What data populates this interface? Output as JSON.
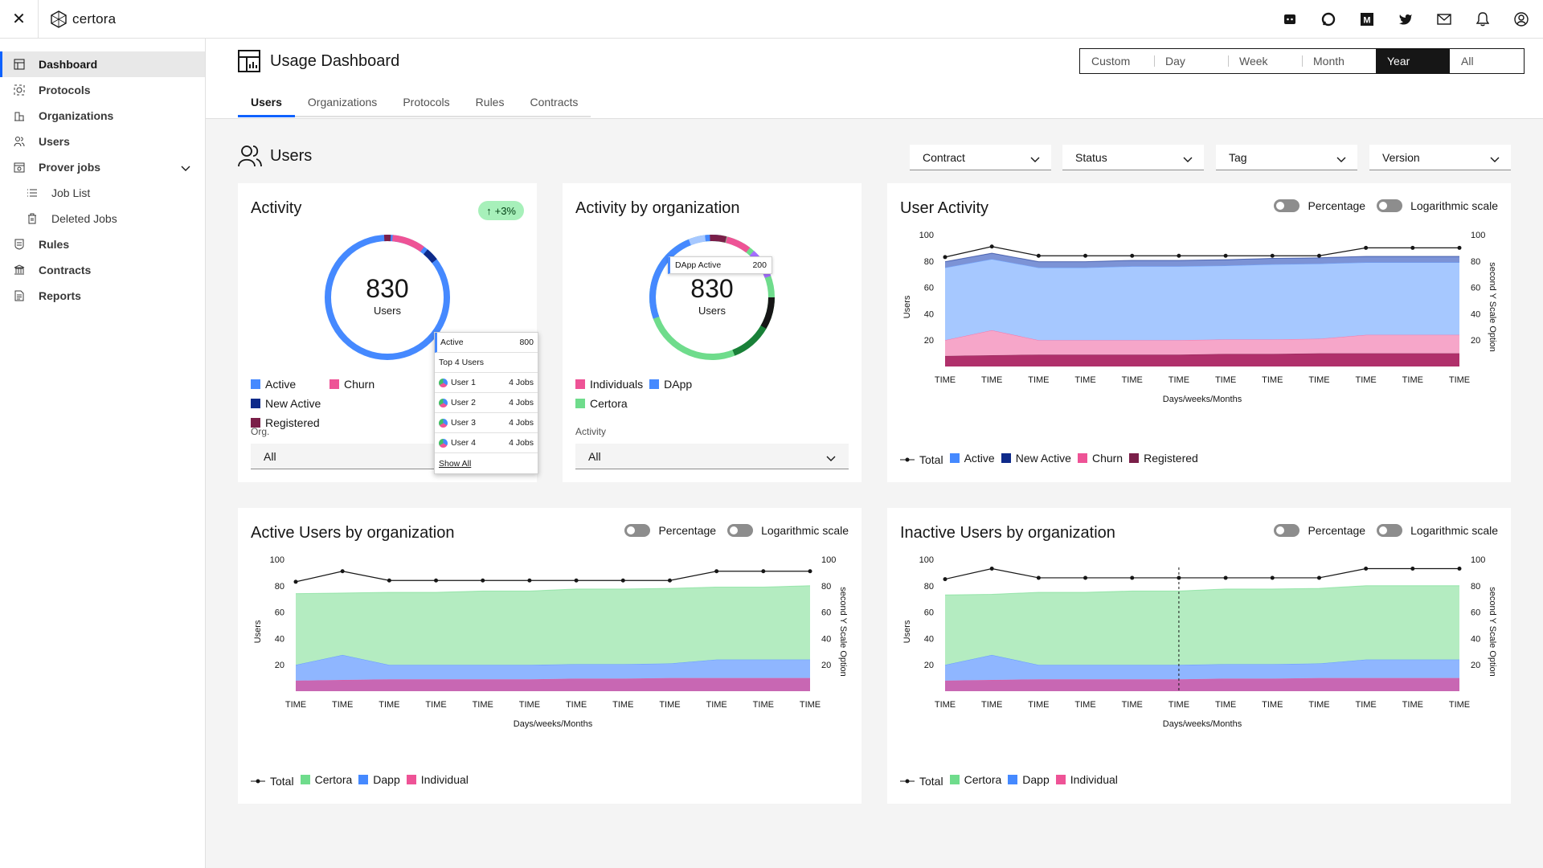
{
  "app": {
    "brand": "certora",
    "close_icon": "close-icon"
  },
  "top_icons": [
    "discord-icon",
    "chat-icon",
    "medium-icon",
    "twitter-icon",
    "mail-icon",
    "bell-icon",
    "user-avatar-icon"
  ],
  "sidebar": {
    "items": [
      {
        "label": "Dashboard",
        "icon": "dashboard-icon",
        "active": true
      },
      {
        "label": "Protocols",
        "icon": "protocols-icon"
      },
      {
        "label": "Organizations",
        "icon": "organizations-icon"
      },
      {
        "label": "Users",
        "icon": "users-icon"
      },
      {
        "label": "Prover jobs",
        "icon": "prover-jobs-icon"
      },
      {
        "label": "Job List",
        "icon": "list-icon",
        "sub": true
      },
      {
        "label": "Deleted Jobs",
        "icon": "trash-icon",
        "sub": true
      },
      {
        "label": "Rules",
        "icon": "rules-icon"
      },
      {
        "label": "Contracts",
        "icon": "contracts-icon"
      },
      {
        "label": "Reports",
        "icon": "reports-icon"
      }
    ]
  },
  "header": {
    "title": "Usage Dashboard",
    "range": [
      "Custom",
      "Day",
      "Week",
      "Month",
      "Year",
      "All"
    ],
    "range_selected": "Year",
    "tabs": [
      "Users",
      "Organizations",
      "Protocols",
      "Rules",
      "Contracts"
    ],
    "active_tab": "Users"
  },
  "section": {
    "title": "Users",
    "filters": [
      "Contract",
      "Status",
      "Tag",
      "Version"
    ]
  },
  "colors": {
    "active": "#4589ff",
    "new_active": "#0e2a8a",
    "churn": "#ee5396",
    "registered": "#7a1f49",
    "certora": "#6fdc8c",
    "dapp": "#4589ff",
    "individual": "#ee5396",
    "total": "#161616"
  },
  "activity": {
    "title": "Activity",
    "badge": "+3%",
    "total": "830",
    "unit": "Users",
    "legend": [
      "Active",
      "Churn",
      "New Active",
      "Registered"
    ],
    "org_label": "Org.",
    "org_value": "All",
    "popup": {
      "header_label": "Active",
      "header_value": "800",
      "subtitle": "Top 4 Users",
      "users": [
        {
          "name": "User 1",
          "jobs": "4 Jobs"
        },
        {
          "name": "User 2",
          "jobs": "4 Jobs"
        },
        {
          "name": "User 3",
          "jobs": "4 Jobs"
        },
        {
          "name": "User 4",
          "jobs": "4 Jobs"
        }
      ],
      "show_all": "Show All"
    }
  },
  "activity_org": {
    "title": "Activity by organization",
    "total": "830",
    "unit": "Users",
    "tooltip_label": "DApp Active",
    "tooltip_value": "200",
    "legend": [
      "Individuals",
      "DApp",
      "Certora"
    ],
    "activity_label": "Activity",
    "activity_value": "All"
  },
  "toggles": {
    "percentage": "Percentage",
    "log": "Logarithmic scale"
  },
  "chart_data": [
    {
      "type": "area",
      "title": "User Activity",
      "ylabel": "Users",
      "y2label": "second Y Scale Option",
      "xlabel": "Days/weeks/Months",
      "x": [
        "TIME",
        "TIME",
        "TIME",
        "TIME",
        "TIME",
        "TIME",
        "TIME",
        "TIME",
        "TIME",
        "TIME",
        "TIME",
        "TIME"
      ],
      "ylim": [
        0,
        100
      ],
      "yticks": [
        20,
        40,
        60,
        80,
        100
      ],
      "series": [
        {
          "name": "Total",
          "kind": "line",
          "values": [
            83,
            91,
            84,
            84,
            84,
            84,
            84,
            84,
            84,
            90,
            90,
            90
          ]
        },
        {
          "name": "Registered",
          "values": [
            8,
            8.5,
            9,
            9,
            9,
            9,
            9.5,
            9.5,
            10,
            10,
            10,
            10
          ]
        },
        {
          "name": "Churn",
          "values": [
            12,
            19,
            11,
            11,
            11,
            11,
            11,
            11,
            11,
            14,
            14,
            14
          ]
        },
        {
          "name": "Active",
          "values": [
            55,
            54,
            55,
            55,
            56,
            56,
            56,
            57,
            57,
            55,
            55,
            55
          ]
        },
        {
          "name": "New Active",
          "values": [
            4.5,
            4.5,
            4.5,
            4.5,
            4.5,
            4.5,
            4.5,
            4.5,
            4.5,
            4.5,
            4.5,
            4.5
          ]
        }
      ],
      "legend": [
        "Total",
        "Active",
        "New Active",
        "Churn",
        "Registered"
      ]
    },
    {
      "type": "area",
      "title": "Active Users by organization",
      "ylabel": "Users",
      "y2label": "second Y Scale Option",
      "xlabel": "Days/weeks/Months",
      "x": [
        "TIME",
        "TIME",
        "TIME",
        "TIME",
        "TIME",
        "TIME",
        "TIME",
        "TIME",
        "TIME",
        "TIME",
        "TIME",
        "TIME"
      ],
      "ylim": [
        0,
        100
      ],
      "yticks": [
        20,
        40,
        60,
        80,
        100
      ],
      "series": [
        {
          "name": "Total",
          "kind": "line",
          "values": [
            83,
            91,
            84,
            84,
            84,
            84,
            84,
            84,
            84,
            91,
            91,
            91
          ]
        },
        {
          "name": "Individual",
          "values": [
            8,
            8.5,
            9,
            9,
            9,
            9,
            9.5,
            9.5,
            10,
            10,
            10,
            10
          ]
        },
        {
          "name": "Dapp",
          "values": [
            12,
            19,
            11,
            11,
            11,
            11,
            11,
            11,
            11,
            14,
            14,
            14
          ]
        },
        {
          "name": "Certora",
          "values": [
            54,
            47,
            55,
            55,
            56,
            56,
            57,
            57,
            57,
            55,
            55,
            56
          ]
        }
      ],
      "legend": [
        "Total",
        "Certora",
        "Dapp",
        "Individual"
      ]
    },
    {
      "type": "area",
      "title": "Inactive Users by organization",
      "ylabel": "Users",
      "y2label": "second Y Scale Option",
      "xlabel": "Days/weeks/Months",
      "x": [
        "TIME",
        "TIME",
        "TIME",
        "TIME",
        "TIME",
        "TIME",
        "TIME",
        "TIME",
        "TIME",
        "TIME",
        "TIME",
        "TIME"
      ],
      "ylim": [
        0,
        100
      ],
      "yticks": [
        20,
        40,
        60,
        80,
        100
      ],
      "series": [
        {
          "name": "Total",
          "kind": "line",
          "values": [
            85,
            93,
            86,
            86,
            86,
            86,
            86,
            86,
            86,
            93,
            93,
            93
          ]
        },
        {
          "name": "Individual",
          "values": [
            8,
            8.5,
            9,
            9,
            9,
            9,
            9.5,
            9.5,
            10,
            10,
            10,
            10
          ]
        },
        {
          "name": "Dapp",
          "values": [
            12,
            19,
            11,
            11,
            11,
            11,
            11,
            11,
            11,
            14,
            14,
            14
          ]
        },
        {
          "name": "Certora",
          "values": [
            53,
            46,
            55,
            55,
            56,
            56,
            57,
            57,
            57,
            56,
            56,
            56
          ]
        }
      ],
      "hover_index": 5,
      "legend": [
        "Total",
        "Certora",
        "Dapp",
        "Individual"
      ]
    }
  ]
}
